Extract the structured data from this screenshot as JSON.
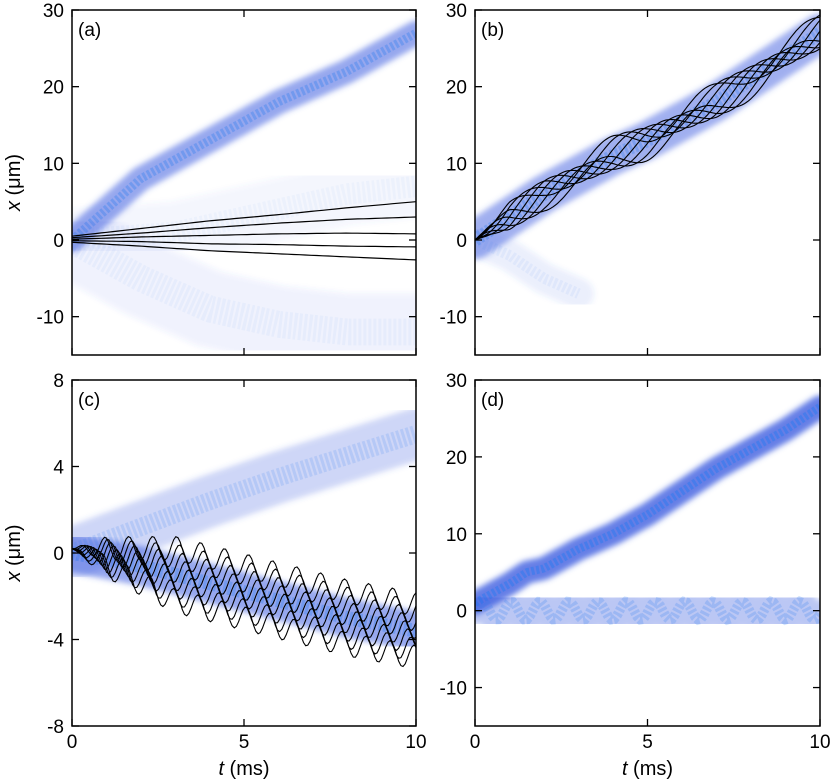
{
  "chart_data": [
    {
      "type": "heatmap",
      "panel": "a",
      "panel_label": "(a)",
      "xlabel_italic": "",
      "xlabel_unit": "",
      "ylabel_italic": "x",
      "ylabel_unit": "(μm)",
      "xlim": [
        0,
        10
      ],
      "ylim": [
        -15,
        30
      ],
      "xticks": [],
      "yticks": [
        30,
        20,
        10,
        0,
        -10
      ],
      "density_bands": [
        {
          "points": [
            [
              0,
              0
            ],
            [
              2,
              8
            ],
            [
              4,
              13
            ],
            [
              6,
              18
            ],
            [
              8,
              22
            ],
            [
              10,
              27
            ]
          ],
          "width": 1.6,
          "opacity": 0.55
        },
        {
          "points": [
            [
              0,
              0
            ],
            [
              2,
              -5
            ],
            [
              4,
              -9
            ],
            [
              6,
              -11
            ],
            [
              8,
              -12
            ],
            [
              10,
              -12
            ]
          ],
          "width": 5,
          "opacity": 0.08
        },
        {
          "points": [
            [
              0,
              0
            ],
            [
              3,
              1
            ],
            [
              6,
              4
            ],
            [
              8,
              6
            ],
            [
              10,
              7
            ]
          ],
          "width": 4,
          "opacity": 0.06
        }
      ],
      "trajectories": [
        [
          [
            0,
            0.5
          ],
          [
            2,
            1.5
          ],
          [
            4,
            2.5
          ],
          [
            6,
            3.3
          ],
          [
            8,
            4.2
          ],
          [
            10,
            5
          ]
        ],
        [
          [
            0,
            0.3
          ],
          [
            2,
            0.9
          ],
          [
            4,
            1.6
          ],
          [
            6,
            2.2
          ],
          [
            8,
            2.7
          ],
          [
            10,
            3
          ]
        ],
        [
          [
            0,
            0.1
          ],
          [
            2,
            0.4
          ],
          [
            4,
            0.6
          ],
          [
            6,
            0.8
          ],
          [
            8,
            0.9
          ],
          [
            10,
            0.8
          ]
        ],
        [
          [
            0,
            -0.1
          ],
          [
            2,
            -0.2
          ],
          [
            4,
            -0.5
          ],
          [
            6,
            -0.6
          ],
          [
            8,
            -0.8
          ],
          [
            10,
            -0.9
          ]
        ],
        [
          [
            0,
            -0.3
          ],
          [
            2,
            -0.8
          ],
          [
            4,
            -1.4
          ],
          [
            6,
            -1.8
          ],
          [
            8,
            -2.2
          ],
          [
            10,
            -2.6
          ]
        ]
      ]
    },
    {
      "type": "heatmap",
      "panel": "b",
      "panel_label": "(b)",
      "xlabel_italic": "",
      "xlabel_unit": "",
      "ylabel_italic": "",
      "ylabel_unit": "",
      "xlim": [
        0,
        10
      ],
      "ylim": [
        -15,
        30
      ],
      "xticks": [],
      "yticks": [
        30,
        20,
        10,
        0,
        -10
      ],
      "density_bands": [
        {
          "points": [
            [
              0,
              0
            ],
            [
              1,
              3
            ],
            [
              2,
              6
            ],
            [
              3,
              8.5
            ],
            [
              4,
              11
            ],
            [
              5,
              13
            ],
            [
              6,
              15.5
            ],
            [
              7,
              18
            ],
            [
              8,
              21
            ],
            [
              9,
              24
            ],
            [
              10,
              27
            ]
          ],
          "width": 2.5,
          "opacity": 0.5
        },
        {
          "points": [
            [
              0,
              0
            ],
            [
              1,
              -2
            ],
            [
              2,
              -5
            ],
            [
              3,
              -7
            ]
          ],
          "width": 2,
          "opacity": 0.1
        }
      ],
      "trajectories_base": [
        [
          0,
          0
        ],
        [
          1,
          3
        ],
        [
          2,
          6
        ],
        [
          3,
          8.5
        ],
        [
          4,
          11
        ],
        [
          5,
          13
        ],
        [
          6,
          15.5
        ],
        [
          7,
          18
        ],
        [
          8,
          21
        ],
        [
          9,
          24
        ],
        [
          10,
          27
        ]
      ],
      "trajectory_count": 8
    },
    {
      "type": "heatmap",
      "panel": "c",
      "panel_label": "(c)",
      "xlabel_italic": "t",
      "xlabel_unit": "(ms)",
      "ylabel_italic": "x",
      "ylabel_unit": "(μm)",
      "xlim": [
        0,
        10
      ],
      "ylim": [
        -8,
        8
      ],
      "xticks": [
        0,
        5,
        10
      ],
      "yticks": [
        8,
        4,
        0,
        -4,
        -8
      ],
      "density_bands": [
        {
          "points": [
            [
              0,
              0
            ],
            [
              2,
              -0.6
            ],
            [
              4,
              -1.4
            ],
            [
              6,
              -2.2
            ],
            [
              8,
              -3
            ],
            [
              10,
              -3.6
            ]
          ],
          "width": 0.9,
          "opacity": 0.55
        },
        {
          "points": [
            [
              0,
              0
            ],
            [
              2,
              1.2
            ],
            [
              4,
              2.4
            ],
            [
              6,
              3.5
            ],
            [
              8,
              4.5
            ],
            [
              10,
              5.5
            ]
          ],
          "width": 1.2,
          "opacity": 0.25
        }
      ],
      "trajectories_base": [
        [
          0,
          0.2
        ],
        [
          2,
          -0.6
        ],
        [
          4,
          -1.4
        ],
        [
          6,
          -2.2
        ],
        [
          8,
          -3
        ],
        [
          10,
          -3.6
        ]
      ],
      "trajectory_count": 8
    },
    {
      "type": "heatmap",
      "panel": "d",
      "panel_label": "(d)",
      "xlabel_italic": "t",
      "xlabel_unit": "(ms)",
      "ylabel_italic": "",
      "ylabel_unit": "",
      "xlim": [
        0,
        10
      ],
      "ylim": [
        -15,
        30
      ],
      "xticks": [
        0,
        5,
        10
      ],
      "yticks": [
        30,
        20,
        10,
        0,
        -10
      ],
      "density_bands": [
        {
          "points": [
            [
              0,
              1
            ],
            [
              1,
              3.5
            ],
            [
              1.5,
              5
            ],
            [
              2,
              5.5
            ],
            [
              3,
              8
            ],
            [
              4,
              10
            ],
            [
              5,
              12.5
            ],
            [
              6,
              15.5
            ],
            [
              7,
              18.5
            ],
            [
              8,
              21
            ],
            [
              9,
              23.5
            ],
            [
              10,
              26.5
            ]
          ],
          "width": 1.5,
          "opacity": 0.8
        },
        {
          "points": [
            [
              0,
              0
            ],
            [
              2,
              0
            ],
            [
              4,
              0
            ],
            [
              6,
              0
            ],
            [
              8,
              0
            ],
            [
              10,
              0
            ]
          ],
          "width": 1.8,
          "opacity": 0.35,
          "wiggle": 1.2
        }
      ]
    }
  ]
}
